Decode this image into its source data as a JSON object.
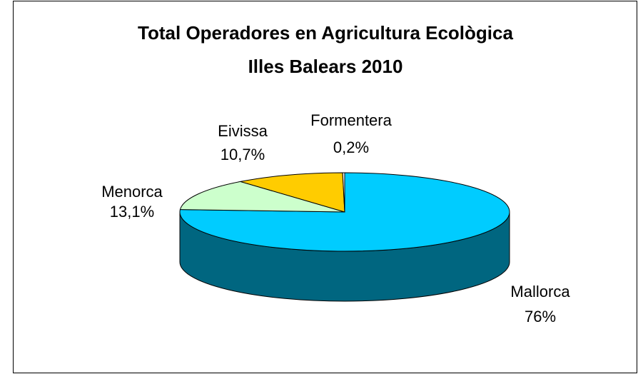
{
  "chart_data": {
    "type": "pie3d",
    "title": "Total Operadores en Agricultura Ecològica",
    "subtitle": "Illes Balears 2010",
    "categories": [
      "Mallorca",
      "Menorca",
      "Eivissa",
      "Formentera"
    ],
    "values": [
      76,
      13.1,
      10.7,
      0.2
    ],
    "value_labels": [
      "76%",
      "13,1%",
      "10,7%",
      "0,2%"
    ],
    "colors": [
      "#00ccff",
      "#ccffcc",
      "#ffcc00",
      "#ffffff"
    ]
  }
}
